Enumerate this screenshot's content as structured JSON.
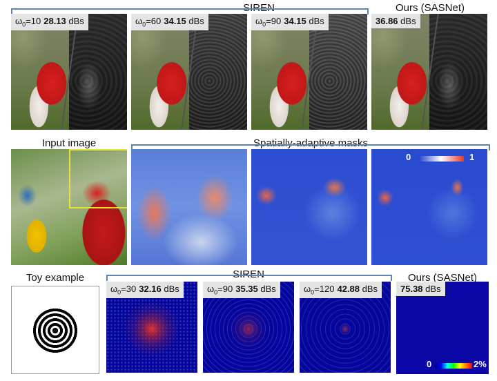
{
  "headers": {
    "siren_top": "SIREN",
    "ours_top": "Ours (SASNet)",
    "input_image": "Input image",
    "masks": "Spatially-adaptive masks",
    "toy_example": "Toy example",
    "siren_bottom": "SIREN",
    "ours_bottom": "Ours (SASNet)"
  },
  "row1": [
    {
      "omega_prefix": "ω",
      "omega_sub": "0",
      "omega_val": "=10",
      "psnr": "28.13",
      "unit": "dBs"
    },
    {
      "omega_prefix": "ω",
      "omega_sub": "0",
      "omega_val": "=60",
      "psnr": "34.15",
      "unit": "dBs"
    },
    {
      "omega_prefix": "ω",
      "omega_sub": "0",
      "omega_val": "=90",
      "psnr": "34.15",
      "unit": "dBs"
    },
    {
      "psnr": "36.86",
      "unit": "dBs"
    }
  ],
  "mask_colorbar": {
    "min": "0",
    "max": "1"
  },
  "row3": [
    {
      "omega_prefix": "ω",
      "omega_sub": "0",
      "omega_val": "=30",
      "psnr": "32.16",
      "unit": "dBs"
    },
    {
      "omega_prefix": "ω",
      "omega_sub": "0",
      "omega_val": "=90",
      "psnr": "35.35",
      "unit": "dBs"
    },
    {
      "omega_prefix": "ω",
      "omega_sub": "0",
      "omega_val": "=120",
      "psnr": "42.88",
      "unit": "dBs"
    },
    {
      "psnr": "75.38",
      "unit": "dBs"
    }
  ],
  "error_colorbar": {
    "min": "0",
    "max": "2%"
  },
  "colors": {
    "bracket": "#5f84b0",
    "label_bg": "#e4e4e4",
    "zoom_box": "#e8e23a"
  }
}
